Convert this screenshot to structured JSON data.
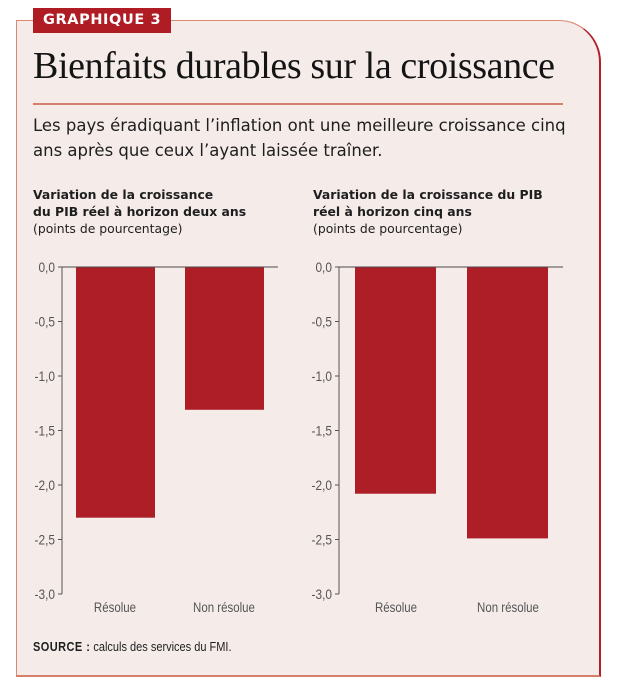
{
  "header": {
    "badge": "GRAPHIQUE 3",
    "title": "Bienfaits durables sur la croissance",
    "subtitle": "Les pays éradiquant l’inflation ont une meilleure croissance cinq ans après que ceux l’ayant laissée traîner."
  },
  "colors": {
    "bar": "#ad1e27",
    "badge": "#b01c24",
    "accent_rule": "#d4806a",
    "background": "#f5ecea",
    "axis": "#555555"
  },
  "panels": [
    {
      "title_bold_line1": "Variation de la croissance",
      "title_bold_line2": "du PIB réel à horizon deux ans",
      "unit": "(points de pourcentage)"
    },
    {
      "title_bold_line1": "Variation de la croissance du PIB",
      "title_bold_line2": "réel à horizon cinq ans",
      "unit": "(points de pourcentage)"
    }
  ],
  "footer": {
    "source_label": "SOURCE :",
    "source_text": " calculs des services du FMI."
  },
  "chart_data": [
    {
      "type": "bar",
      "title": "Variation de la croissance du PIB réel à horizon deux ans",
      "ylabel": "(points de pourcentage)",
      "xlabel": "",
      "categories": [
        "Résolue",
        "Non résolue"
      ],
      "values": [
        -2.3,
        -1.31
      ],
      "ylim": [
        -3.0,
        0.0
      ],
      "yticks": [
        0.0,
        -0.5,
        -1.0,
        -1.5,
        -2.0,
        -2.5,
        -3.0
      ],
      "ytick_labels": [
        "0,0",
        "-0,5",
        "-1,0",
        "-1,5",
        "-2,0",
        "-2,5",
        "-3,0"
      ],
      "grid": false,
      "legend": "none"
    },
    {
      "type": "bar",
      "title": "Variation de la croissance du PIB réel à horizon cinq ans",
      "ylabel": "(points de pourcentage)",
      "xlabel": "",
      "categories": [
        "Résolue",
        "Non résolue"
      ],
      "values": [
        -2.08,
        -2.49
      ],
      "ylim": [
        -3.0,
        0.0
      ],
      "yticks": [
        0.0,
        -0.5,
        -1.0,
        -1.5,
        -2.0,
        -2.5,
        -3.0
      ],
      "ytick_labels": [
        "0,0",
        "-0,5",
        "-1,0",
        "-1,5",
        "-2,0",
        "-2,5",
        "-3,0"
      ],
      "grid": false,
      "legend": "none"
    }
  ]
}
